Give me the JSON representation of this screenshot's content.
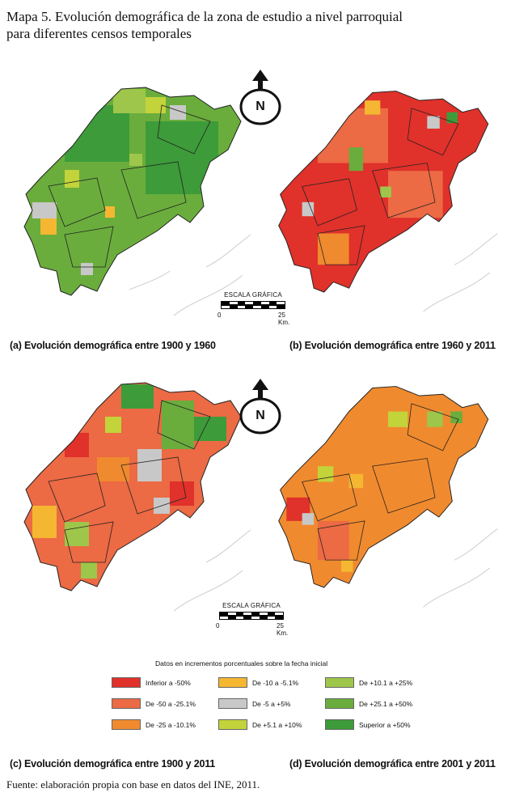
{
  "title_line1": "Mapa 5. Evolución demográfica de la zona de estudio a nivel parroquial",
  "title_line2": "para diferentes censos temporales",
  "north_label": "N",
  "scale": {
    "label": "ESCALA GRÁFICA",
    "start": "0",
    "end": "25 Km."
  },
  "captions": {
    "a": "(a) Evolución demográfica entre 1900 y 1960",
    "b": "(b) Evolución demográfica entre 1960 y 2011",
    "c": "(c) Evolución demográfica entre 1900 y 2011",
    "d": "(d) Evolución demográfica entre 2001 y 2011"
  },
  "legend": {
    "title": "Datos en incrementos porcentuales sobre la fecha inicial",
    "items": [
      {
        "label": "Inferior a -50%",
        "color": "#e0312b"
      },
      {
        "label": "De -50 a -25.1%",
        "color": "#ec6a44"
      },
      {
        "label": "De -25 a -10.1%",
        "color": "#f08a2e"
      },
      {
        "label": "De -10 a -5.1%",
        "color": "#f5b731"
      },
      {
        "label": "De -5 a +5%",
        "color": "#c8c8c8"
      },
      {
        "label": "De +5.1 a +10%",
        "color": "#c3d33a"
      },
      {
        "label": "De +10.1 a +25%",
        "color": "#9ec64a"
      },
      {
        "label": "De +25.1 a +50%",
        "color": "#6aad3c"
      },
      {
        "label": "Superior a +50%",
        "color": "#3d9b3a"
      }
    ]
  },
  "source": "Fuente: elaboración propia con base en datos del INE, 2011."
}
